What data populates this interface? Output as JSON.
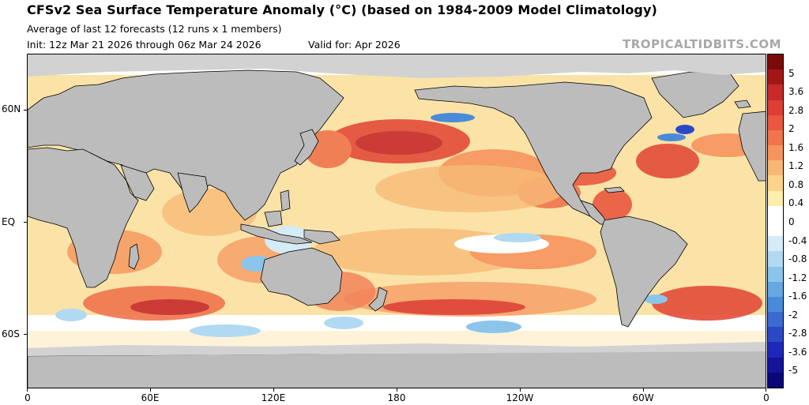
{
  "header": {
    "title": "CFSv2 Sea Surface Temperature Anomaly (°C) (based on 1984-2009 Model Climatology)",
    "subtitle": "Average of last 12 forecasts (12 runs x 1 members)",
    "init": "Init: 12z Mar 21 2026 through 06z Mar 24 2026",
    "valid": "Valid for: Apr 2026",
    "brand": "TROPICALTIDBITS.COM"
  },
  "axes": {
    "lat_labels": [
      "60N",
      "EQ",
      "60S"
    ],
    "lon_labels": [
      "0",
      "60E",
      "120E",
      "180",
      "120W",
      "60W",
      "0"
    ]
  },
  "colorbar": {
    "labels": [
      "5",
      "3.6",
      "2.8",
      "2",
      "1.6",
      "1.2",
      "0.8",
      "0.4",
      "0",
      "-0.4",
      "-0.8",
      "-1.2",
      "-1.6",
      "-2",
      "-2.8",
      "-3.6",
      "-5"
    ],
    "colors": [
      "#7a0b0b",
      "#a31616",
      "#c62a2a",
      "#dd3d32",
      "#e9573e",
      "#f0744c",
      "#f5955d",
      "#f8b673",
      "#fbd48c",
      "#fdeead",
      "#ffffff",
      "#ffffff",
      "#d5ebf7",
      "#b1d9f2",
      "#8cc5ec",
      "#66a9e2",
      "#4a8bd9",
      "#3a6bd1",
      "#2b49c7",
      "#1e28b8",
      "#14139a",
      "#0c0776"
    ]
  },
  "map_colors": {
    "land": "#bcbcbc",
    "ice": "#d2d2d2",
    "ocean_warm": "#fbe3a8",
    "ocean_neutral": "#ffffff"
  }
}
